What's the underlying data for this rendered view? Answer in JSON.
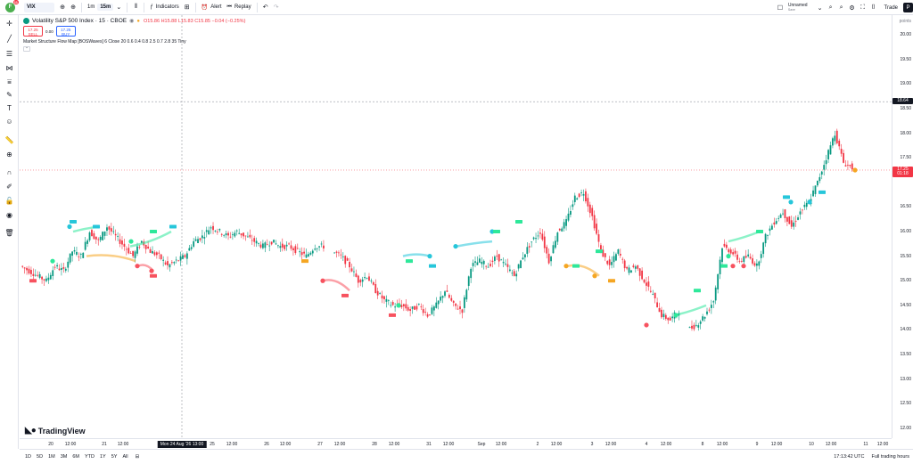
{
  "topbar": {
    "avatar_letter": "F",
    "avatar_badge": "11",
    "symbol": "VIX",
    "timeframes": [
      "1m",
      "15m"
    ],
    "indicators_label": "Indicators",
    "alert_label": "Alert",
    "replay_label": "Replay",
    "layout_name": "Unnamed",
    "layout_sub": "Save",
    "trade_label": "Trade",
    "publish_letter": "P"
  },
  "legend": {
    "title": "Volatility S&P 500 Index · 15 · CBOE",
    "open": "O15.86",
    "high": "H15.88",
    "low": "L15.83",
    "close": "C15.85",
    "change": "−0.04 (−0.25%)",
    "sell_price": "17.25",
    "sell_label": "SELL",
    "spread": "0.00",
    "buy_price": "17.25",
    "buy_label": "BUY",
    "indicator": "Market Structure Flow Map [BOSWaves] 6 Close 20 0.6 0.4 0.8 2.5 0.7 2.8 35 Tiny"
  },
  "price_axis": {
    "unit": "points",
    "labels": [
      "20.00",
      "19.50",
      "19.00",
      "18.50",
      "18.00",
      "17.50",
      "16.50",
      "16.00",
      "15.50",
      "15.00",
      "14.50",
      "14.00",
      "13.50",
      "13.00",
      "12.50",
      "12.00"
    ],
    "crosshair_price": "18.64",
    "last_price": "17.25",
    "last_countdown": "01:18"
  },
  "time_axis": {
    "labels": [
      "20",
      "12:00",
      "21",
      "12:00",
      "Mon 24 Aug '26  13:00",
      "25",
      "12:00",
      "26",
      "12:00",
      "27",
      "12:00",
      "28",
      "12:00",
      "31",
      "12:00",
      "Sep",
      "12:00",
      "2",
      "12:00",
      "3",
      "12:00",
      "4",
      "12:00",
      "8",
      "12:00",
      "9",
      "12:00",
      "10",
      "12:00",
      "11",
      "12:00"
    ]
  },
  "bottombar": {
    "ranges": [
      "1D",
      "5D",
      "1M",
      "3M",
      "6M",
      "YTD",
      "1Y",
      "5Y",
      "All"
    ],
    "clock": "17:13:42 UTC",
    "session": "Full trading hours"
  },
  "brand": {
    "name": "TradingView"
  },
  "colors": {
    "up": "#089981",
    "down": "#f23645",
    "crosshair": "#9598a1",
    "bull_label": "#2ee89a",
    "bear_label": "#f7525f",
    "cyan": "#26c6da",
    "orange": "#f5a623"
  },
  "chart_data": {
    "type": "candlestick",
    "title": "Volatility S&P 500 Index · 15 · CBOE",
    "ylim": [
      11.8,
      20.4
    ],
    "path_prices": [
      15.3,
      15.2,
      15.1,
      15.0,
      15.3,
      15.2,
      15.6,
      15.5,
      16.0,
      15.8,
      16.1,
      15.9,
      15.7,
      15.5,
      15.8,
      15.6,
      15.5,
      15.3,
      15.4,
      15.5,
      15.8,
      15.9,
      16.1,
      16.0,
      15.9,
      16.0,
      15.9,
      15.8,
      15.7,
      15.8,
      15.7,
      15.7,
      15.6,
      15.5,
      15.7,
      15.7,
      15.6,
      15.5,
      15.3,
      15.0,
      15.1,
      14.8,
      14.6,
      14.5,
      14.5,
      14.4,
      14.5,
      14.3,
      14.5,
      14.8,
      14.5,
      14.4,
      15.3,
      15.4,
      15.3,
      15.5,
      15.3,
      15.1,
      15.5,
      15.8,
      16.0,
      15.4,
      16.0,
      16.2,
      16.7,
      16.8,
      16.3,
      15.6,
      15.3,
      15.6,
      15.2,
      15.3,
      15.0,
      14.7,
      14.3,
      14.2,
      14.4,
      14.0,
      14.1,
      14.3,
      14.6,
      15.7,
      15.6,
      15.4,
      15.5,
      15.3,
      15.9,
      16.2,
      16.4,
      16.1,
      16.4,
      16.6,
      17.0,
      17.5,
      18.0,
      17.4,
      17.3
    ]
  }
}
